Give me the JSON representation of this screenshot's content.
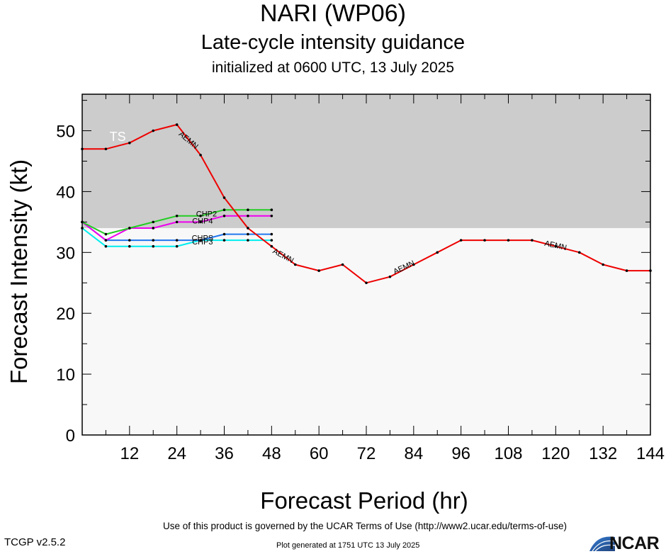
{
  "header": {
    "title": "NARI (WP06)",
    "subtitle": "Late-cycle intensity guidance",
    "init_line": "initialized at 0600 UTC, 13 July 2025"
  },
  "footer": {
    "terms": "Use of this product is governed by the UCAR Terms of Use (http://www2.ucar.edu/terms-of-use)",
    "version": "TCGP v2.5.2",
    "generated": "Plot generated at 1751 UTC   13 July 2025",
    "logo": "NCAR"
  },
  "chart_data": {
    "type": "line",
    "xlabel": "Forecast Period (hr)",
    "ylabel": "Forecast Intensity (kt)",
    "xlim": [
      0,
      144
    ],
    "ylim": [
      0,
      56
    ],
    "xticks": [
      12,
      24,
      36,
      48,
      60,
      72,
      84,
      96,
      108,
      120,
      132,
      144
    ],
    "yticks": [
      0,
      10,
      20,
      30,
      40,
      50
    ],
    "bands": [
      {
        "label": "TS",
        "ymin": 34,
        "ymax": 56,
        "color": "#cccccc"
      },
      {
        "label": "",
        "ymin": 0,
        "ymax": 34,
        "color": "#f8f8f8"
      }
    ],
    "series": [
      {
        "name": "AEMN",
        "color": "#ee0000",
        "x": [
          0,
          6,
          12,
          18,
          24,
          30,
          36,
          42,
          48,
          54,
          60,
          66,
          72,
          78,
          84,
          90,
          96,
          102,
          108,
          114,
          120,
          126,
          132,
          138,
          144
        ],
        "y": [
          47,
          47,
          48,
          50,
          51,
          46,
          39,
          34,
          31,
          28,
          27,
          28,
          25,
          26,
          28,
          30,
          32,
          32,
          32,
          32,
          31,
          30,
          28,
          27,
          27
        ],
        "labels": [
          {
            "text": "AEMN",
            "x": 27,
            "y": 48.5,
            "angle": 40
          },
          {
            "text": "AEMN",
            "x": 51,
            "y": 29.5,
            "angle": 28
          },
          {
            "text": "AEMN",
            "x": 81.5,
            "y": 27.6,
            "angle": -25
          },
          {
            "text": "AEMN",
            "x": 120,
            "y": 31.2,
            "angle": 12
          }
        ]
      },
      {
        "name": "CHP2",
        "color": "#22cc22",
        "x": [
          0,
          6,
          12,
          18,
          24,
          30,
          36,
          42,
          48
        ],
        "y": [
          35,
          33,
          34,
          35,
          36,
          36,
          37,
          37,
          37
        ],
        "labels": [
          {
            "text": "CHP2",
            "x": 31.5,
            "y": 36.4,
            "angle": 0
          }
        ]
      },
      {
        "name": "CHP4",
        "color": "#ee00ee",
        "x": [
          0,
          6,
          12,
          18,
          24,
          30,
          36,
          42,
          48
        ],
        "y": [
          35,
          32,
          34,
          34,
          35,
          35,
          36,
          36,
          36
        ],
        "labels": [
          {
            "text": "CHP4",
            "x": 30.5,
            "y": 35.2,
            "angle": 0
          }
        ]
      },
      {
        "name": "CHPS",
        "color": "#2277ee",
        "x": [
          0,
          6,
          12,
          18,
          24,
          30,
          36,
          42,
          48
        ],
        "y": [
          35,
          32,
          32,
          32,
          32,
          32,
          33,
          33,
          33
        ],
        "labels": [
          {
            "text": "CHPS",
            "x": 30.5,
            "y": 32.4,
            "angle": 0
          }
        ]
      },
      {
        "name": "CHP3",
        "color": "#00eeee",
        "x": [
          0,
          6,
          12,
          18,
          24,
          30,
          36,
          42,
          48
        ],
        "y": [
          34,
          31,
          31,
          31,
          31,
          32,
          32,
          32,
          32
        ],
        "labels": [
          {
            "text": "CHP3",
            "x": 30.5,
            "y": 31.8,
            "angle": 0
          }
        ]
      }
    ]
  }
}
